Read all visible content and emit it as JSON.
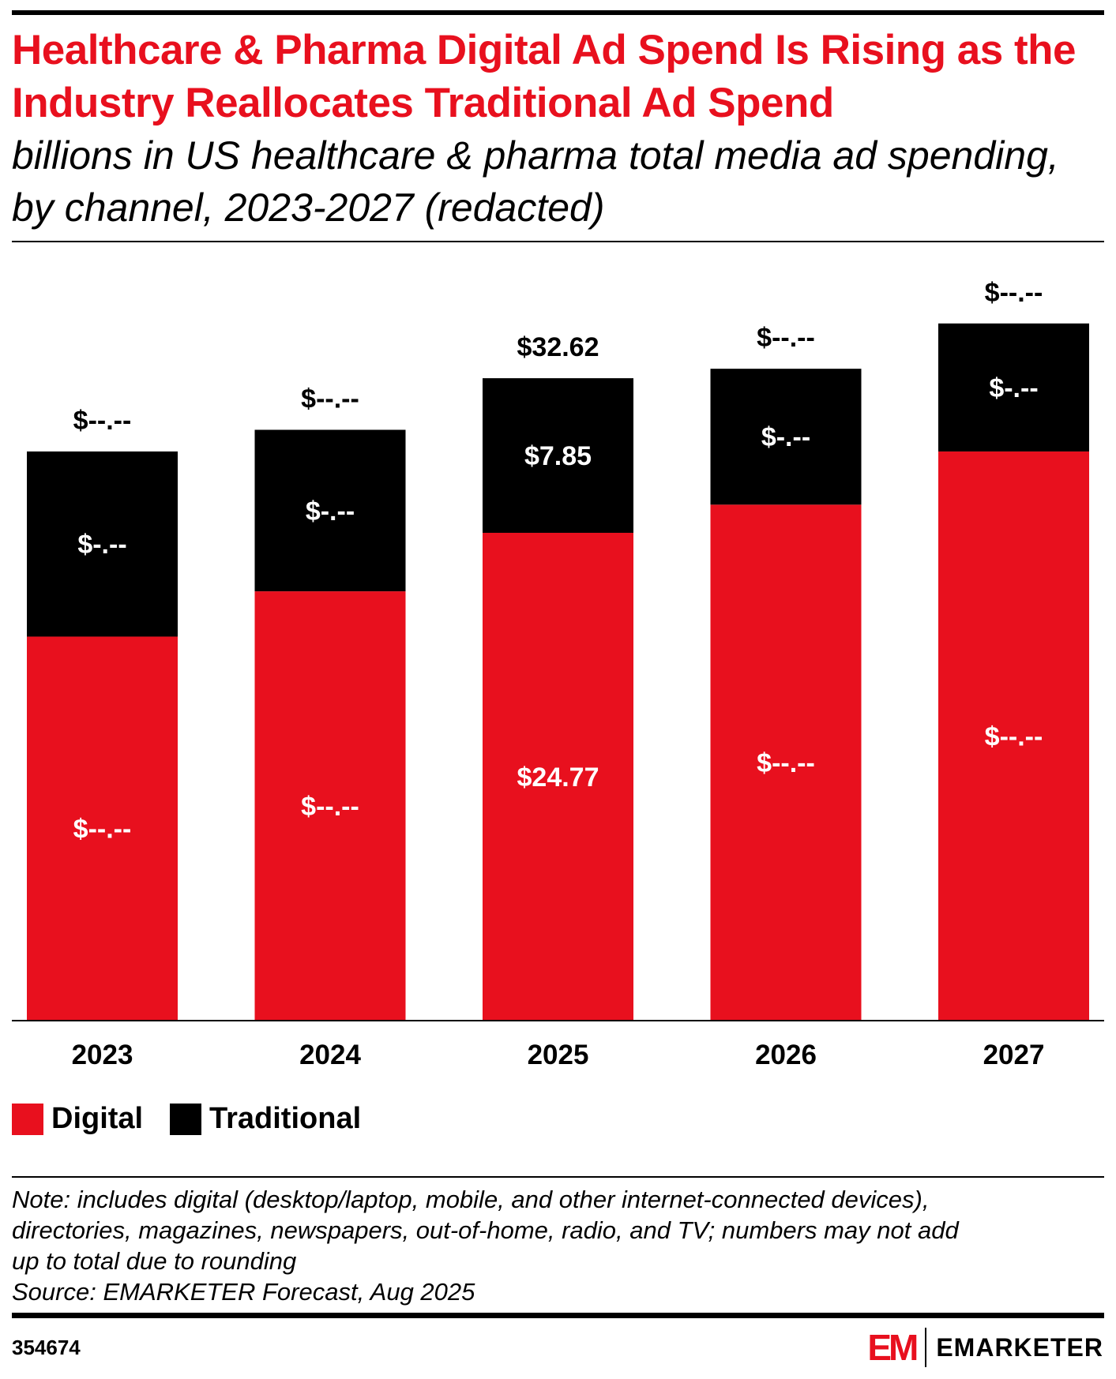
{
  "title": "Healthcare & Pharma Digital Ad Spend Is Rising as the Industry Reallocates Traditional Ad Spend",
  "subtitle": "billions in US healthcare & pharma total media ad spending, by channel, 2023-2027 (redacted)",
  "colors": {
    "digital": "#e8101e",
    "traditional": "#000000"
  },
  "chart_data": {
    "type": "bar",
    "stacked": true,
    "categories": [
      "2023",
      "2024",
      "2025",
      "2026",
      "2027"
    ],
    "series": [
      {
        "name": "Digital",
        "values": [
          19.5,
          21.8,
          24.77,
          26.2,
          28.9
        ],
        "labels": [
          "$--.--",
          "$--.--",
          "$24.77",
          "$--.--",
          "$--.--"
        ]
      },
      {
        "name": "Traditional",
        "values": [
          9.4,
          8.2,
          7.85,
          6.9,
          6.5
        ],
        "labels": [
          "$-.--",
          "$-.--",
          "$7.85",
          "$-.--",
          "$-.--"
        ]
      }
    ],
    "totals": [
      "$--.--",
      "$--.--",
      "$32.62",
      "$--.--",
      "$--.--"
    ],
    "ylim": [
      0,
      35.4
    ],
    "grid": false,
    "legend": "bottom-left"
  },
  "legend": [
    {
      "label": "Digital"
    },
    {
      "label": "Traditional"
    }
  ],
  "note": [
    "Note: includes digital (desktop/laptop, mobile, and other internet-connected devices),",
    "directories, magazines, newspapers, out-of-home, radio, and TV; numbers may not add",
    "up to total due to rounding",
    "Source: EMARKETER Forecast, Aug 2025"
  ],
  "chart_id": "354674",
  "logo": {
    "mark": "EM",
    "word": "EMARKETER"
  }
}
